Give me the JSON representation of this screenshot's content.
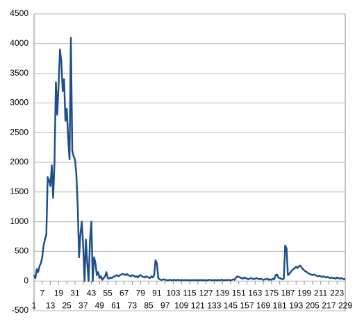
{
  "chart_data": {
    "type": "line",
    "x": [
      1,
      2,
      3,
      4,
      5,
      6,
      7,
      8,
      9,
      10,
      11,
      12,
      13,
      14,
      15,
      16,
      17,
      18,
      19,
      20,
      21,
      22,
      23,
      24,
      25,
      26,
      27,
      28,
      29,
      30,
      31,
      32,
      33,
      34,
      35,
      36,
      37,
      38,
      39,
      40,
      41,
      42,
      43,
      44,
      45,
      46,
      47,
      48,
      49,
      50,
      51,
      52,
      53,
      54,
      55,
      56,
      57,
      58,
      59,
      60,
      61,
      62,
      63,
      64,
      65,
      66,
      67,
      68,
      69,
      70,
      71,
      72,
      73,
      74,
      75,
      76,
      77,
      78,
      79,
      80,
      81,
      82,
      83,
      84,
      85,
      86,
      87,
      88,
      89,
      90,
      91,
      92,
      93,
      94,
      95,
      96,
      97,
      98,
      99,
      100,
      101,
      102,
      103,
      104,
      105,
      106,
      107,
      108,
      109,
      110,
      111,
      112,
      113,
      114,
      115,
      116,
      117,
      118,
      119,
      120,
      121,
      122,
      123,
      124,
      125,
      126,
      127,
      128,
      129,
      130,
      131,
      132,
      133,
      134,
      135,
      136,
      137,
      138,
      139,
      140,
      141,
      142,
      143,
      144,
      145,
      146,
      147,
      148,
      149,
      150,
      151,
      152,
      153,
      154,
      155,
      156,
      157,
      158,
      159,
      160,
      161,
      162,
      163,
      164,
      165,
      166,
      167,
      168,
      169,
      170,
      171,
      172,
      173,
      174,
      175,
      176,
      177,
      178,
      179,
      180,
      181,
      182,
      183,
      184,
      185,
      186,
      187,
      188,
      189,
      190,
      191,
      192,
      193,
      194,
      195,
      196,
      197,
      198,
      199,
      200,
      201,
      202,
      203,
      204,
      205,
      206,
      207,
      208,
      209,
      210,
      211,
      212,
      213,
      214,
      215,
      216,
      217,
      218,
      219,
      220,
      221,
      222,
      223,
      224,
      225,
      226,
      227,
      228,
      229
    ],
    "series": [
      {
        "color": "#1f4e8c",
        "values": [
          100,
          50,
          200,
          150,
          250,
          300,
          400,
          600,
          700,
          780,
          1750,
          1700,
          1600,
          1950,
          1400,
          2000,
          3350,
          2800,
          3300,
          3900,
          3700,
          3200,
          3400,
          2700,
          2900,
          2400,
          2050,
          4100,
          2200,
          2100,
          2050,
          1800,
          1250,
          400,
          800,
          1000,
          600,
          0,
          700,
          300,
          0,
          700,
          1000,
          0,
          400,
          300,
          100,
          150,
          50,
          80,
          20,
          50,
          80,
          150,
          50,
          40,
          60,
          50,
          70,
          80,
          90,
          100,
          80,
          100,
          110,
          120,
          110,
          100,
          120,
          100,
          90,
          80,
          100,
          90,
          70,
          80,
          60,
          90,
          100,
          80,
          70,
          60,
          80,
          70,
          60,
          50,
          80,
          60,
          100,
          350,
          300,
          50,
          30,
          20,
          20,
          30,
          20,
          20,
          10,
          20,
          20,
          10,
          20,
          20,
          10,
          20,
          20,
          10,
          20,
          10,
          20,
          10,
          20,
          10,
          20,
          10,
          20,
          10,
          20,
          10,
          20,
          10,
          20,
          10,
          20,
          10,
          20,
          10,
          20,
          20,
          10,
          20,
          10,
          20,
          10,
          20,
          10,
          20,
          20,
          10,
          20,
          10,
          20,
          20,
          10,
          20,
          30,
          20,
          60,
          80,
          70,
          60,
          50,
          40,
          60,
          50,
          40,
          30,
          40,
          50,
          40,
          30,
          40,
          50,
          40,
          30,
          40,
          30,
          20,
          30,
          30,
          40,
          20,
          30,
          20,
          40,
          30,
          100,
          110,
          60,
          50,
          40,
          30,
          40,
          600,
          550,
          100,
          120,
          150,
          180,
          200,
          220,
          240,
          220,
          250,
          260,
          230,
          200,
          180,
          160,
          150,
          130,
          120,
          110,
          100,
          110,
          100,
          90,
          80,
          90,
          80,
          70,
          80,
          70,
          60,
          70,
          60,
          50,
          60,
          50,
          50,
          40,
          60,
          50,
          40,
          50,
          40,
          30,
          40
        ]
      }
    ],
    "xlim": [
      1,
      229
    ],
    "xticks": [
      1,
      7,
      13,
      19,
      25,
      31,
      37,
      43,
      49,
      55,
      61,
      67,
      73,
      79,
      85,
      91,
      97,
      103,
      109,
      115,
      121,
      127,
      133,
      139,
      145,
      151,
      157,
      163,
      169,
      175,
      181,
      187,
      193,
      199,
      205,
      211,
      217,
      223,
      229
    ],
    "ylim": [
      -500,
      4500
    ],
    "yticks": [
      -500,
      0,
      500,
      1000,
      1500,
      2000,
      2500,
      3000,
      3500,
      4000,
      4500
    ],
    "grid": true
  }
}
